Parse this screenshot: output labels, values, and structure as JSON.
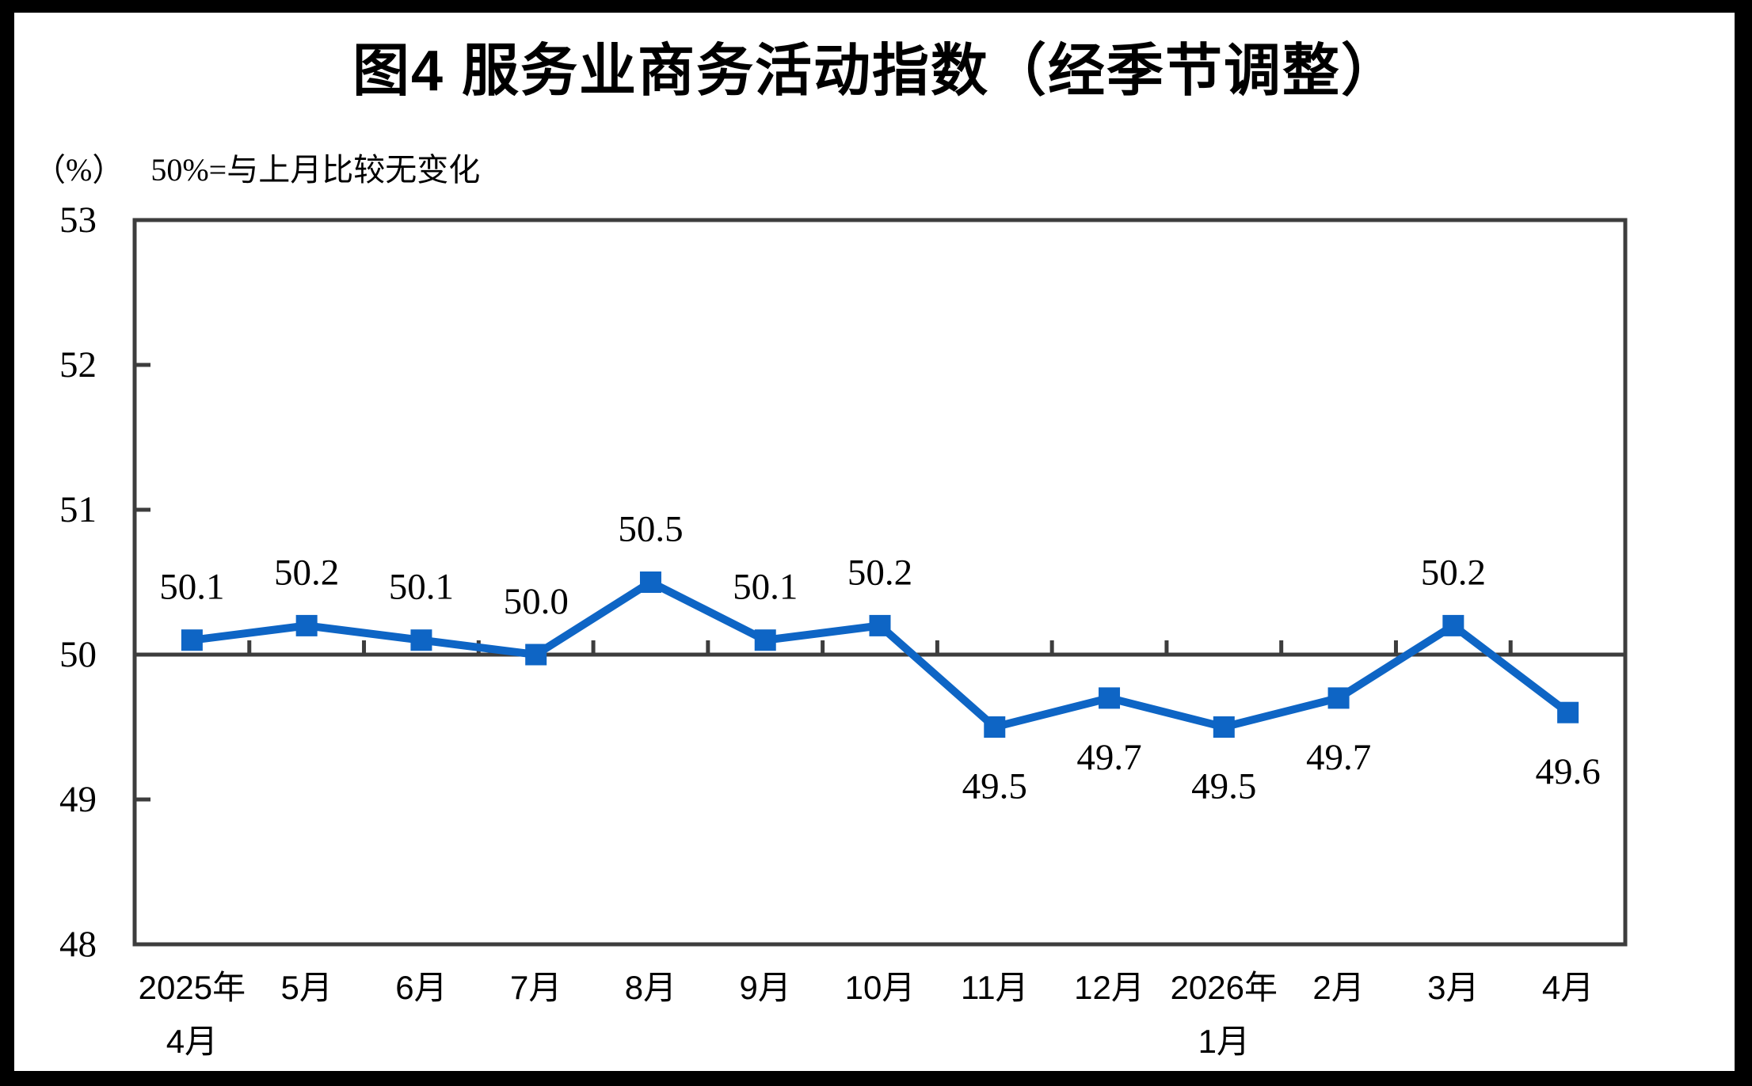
{
  "page": {
    "title": "图4  服务业商务活动指数（经季节调整）",
    "unit_label": "（%）",
    "reference_note": "50%=与上月比较无变化"
  },
  "chart_data": {
    "type": "line",
    "title": "图4  服务业商务活动指数（经季节调整）",
    "unit_note": "（%）",
    "reference_note": "50%=与上月比较无变化",
    "categories": [
      [
        "2025年",
        "4月"
      ],
      [
        "5月"
      ],
      [
        "6月"
      ],
      [
        "7月"
      ],
      [
        "8月"
      ],
      [
        "9月"
      ],
      [
        "10月"
      ],
      [
        "11月"
      ],
      [
        "12月"
      ],
      [
        "2026年",
        "1月"
      ],
      [
        "2月"
      ],
      [
        "3月"
      ],
      [
        "4月"
      ]
    ],
    "series": [
      {
        "values": [
          50.1,
          50.2,
          50.1,
          50.0,
          50.5,
          50.1,
          50.2,
          49.5,
          49.7,
          49.5,
          49.7,
          50.2,
          49.6
        ],
        "labels": [
          "50.1",
          "50.2",
          "50.1",
          "50.0",
          "50.5",
          "50.1",
          "50.2",
          "49.5",
          "49.7",
          "49.5",
          "49.7",
          "50.2",
          "49.6"
        ]
      }
    ],
    "ylim": [
      48,
      53
    ],
    "yticks": [
      48,
      49,
      50,
      51,
      52,
      53
    ],
    "baseline": 50,
    "grid": false,
    "legend_position": "none",
    "line_color": "#0E65C5",
    "marker_color": "#0E65C5",
    "axis_color": "#3d3d3d",
    "label_color": "#000000"
  }
}
